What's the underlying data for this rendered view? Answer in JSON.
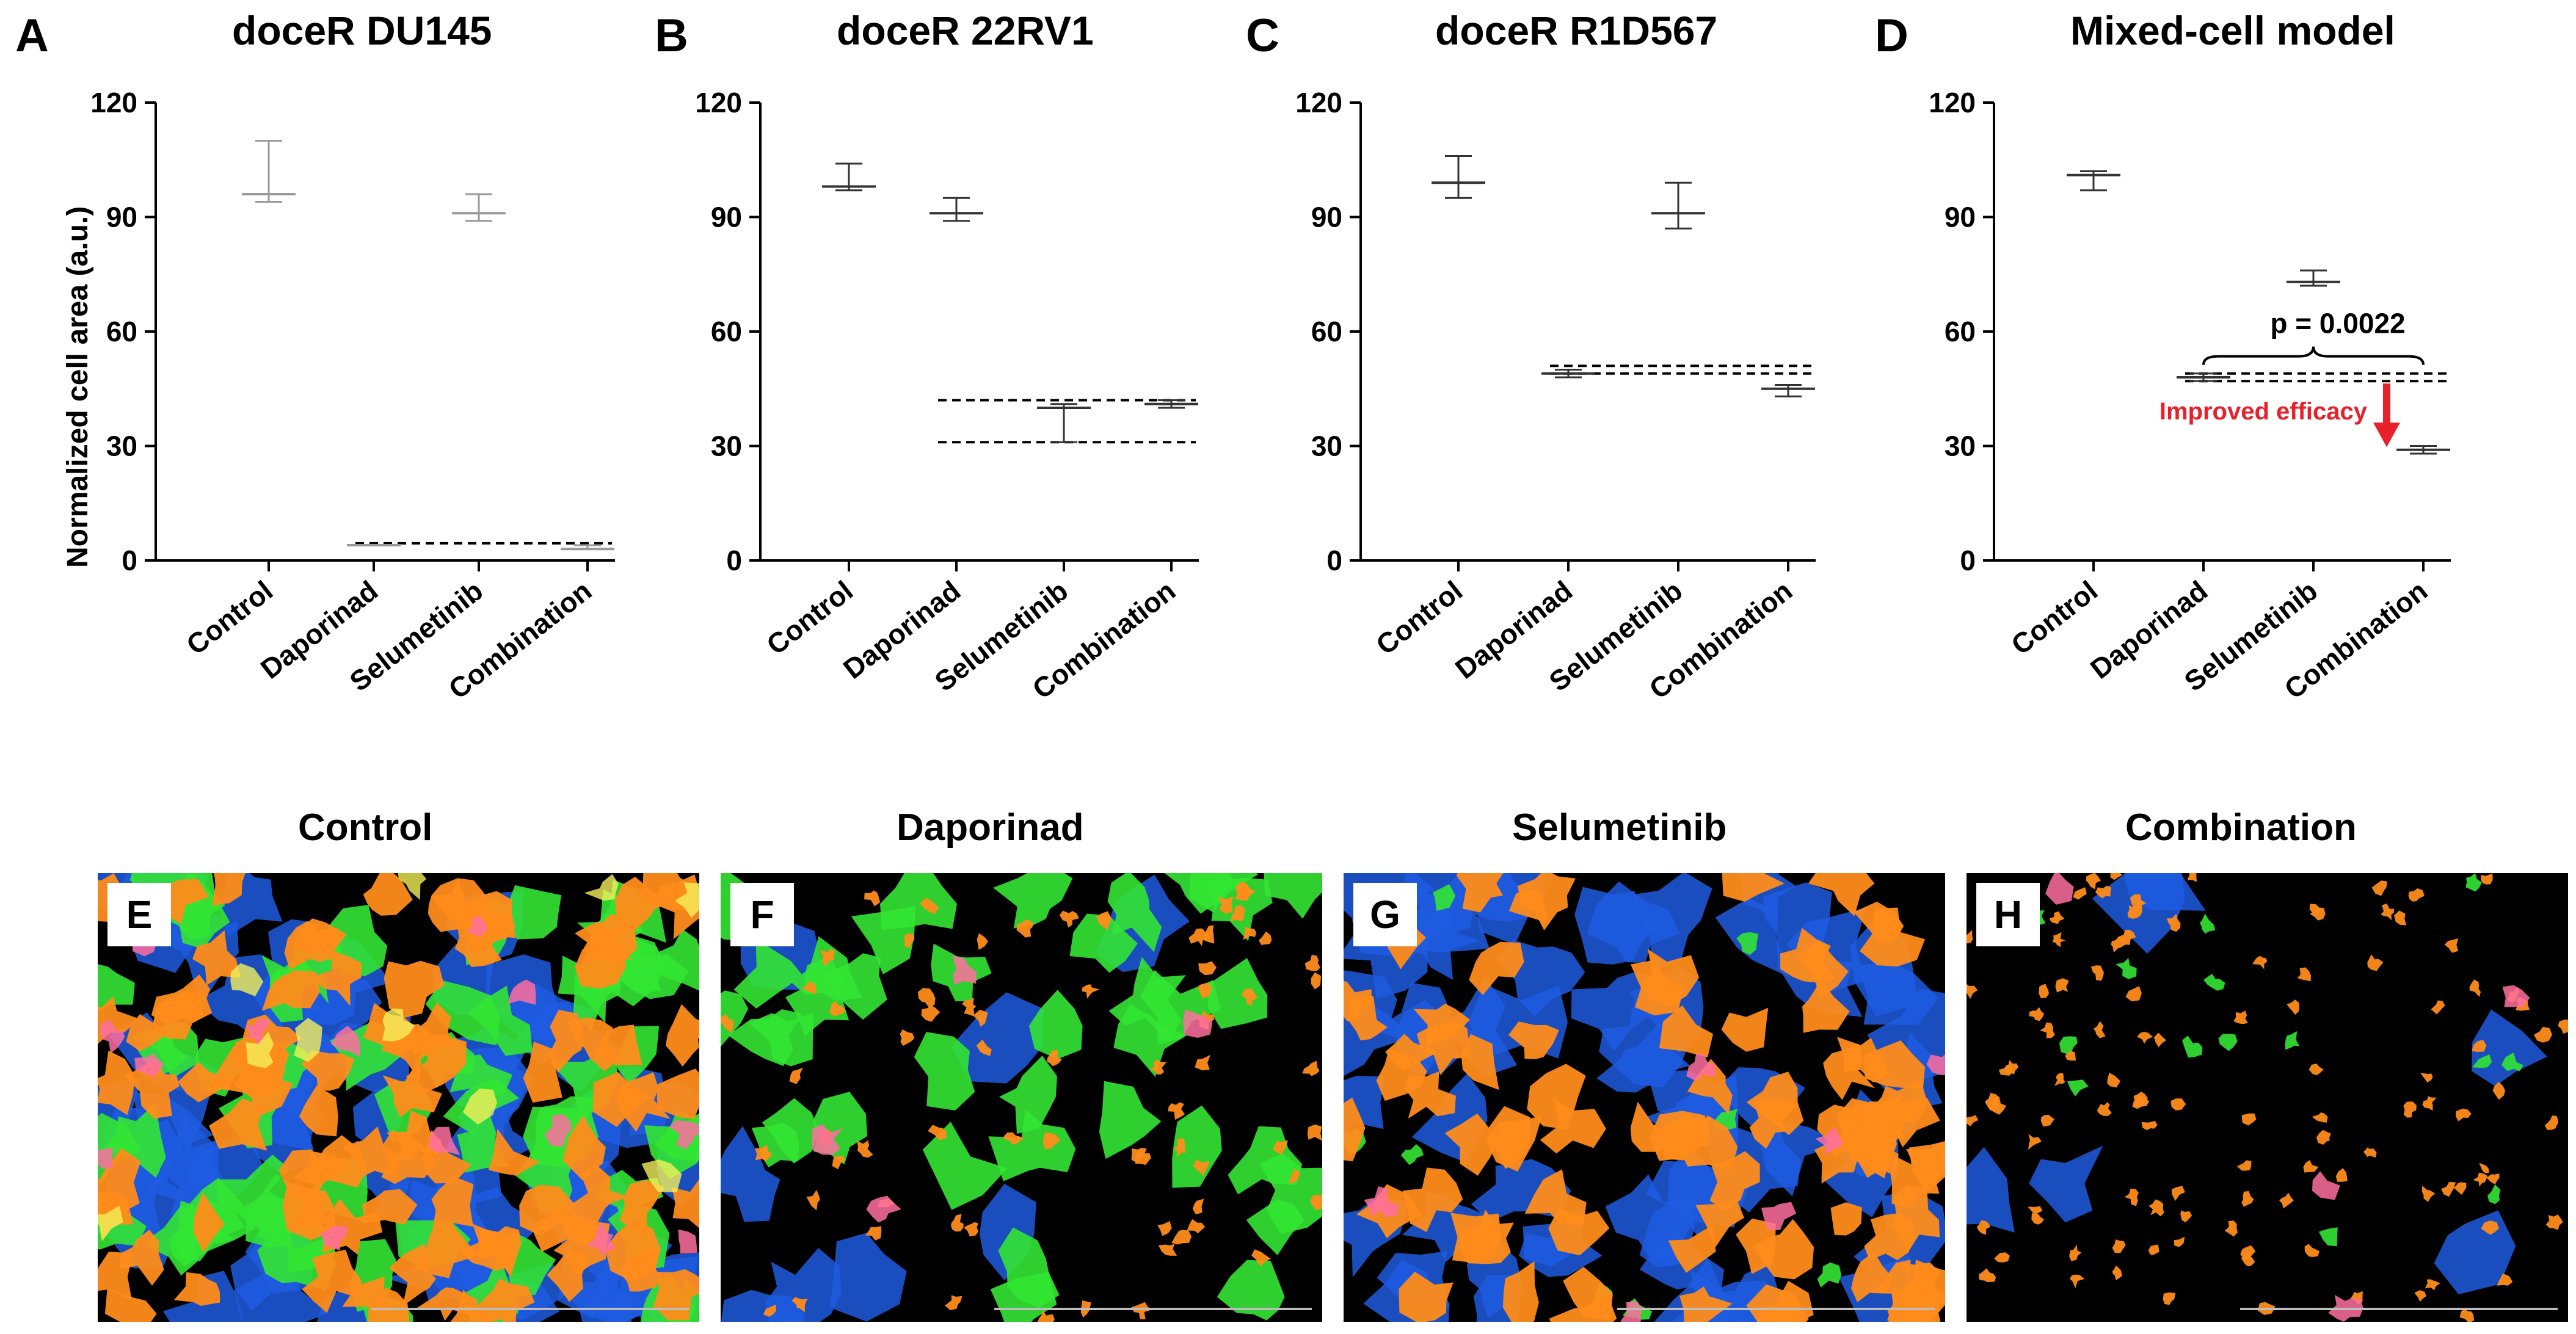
{
  "chart_data": [
    {
      "panel": "A",
      "type": "box",
      "title": "doceR DU145",
      "ylabel": "Normalized cell area (a.u.)",
      "ylim": [
        0,
        120
      ],
      "yticks": [
        "0",
        "30",
        "60",
        "90",
        "120"
      ],
      "categories": [
        "Control",
        "Daporinad",
        "Selumetinib",
        "Combination"
      ],
      "values": [
        96,
        4,
        91,
        3
      ],
      "errors": [
        [
          94,
          110
        ],
        [
          4,
          4
        ],
        [
          89,
          96
        ],
        [
          3,
          4
        ]
      ],
      "reference_lines": [
        4.5
      ],
      "color": "#9a9a9a"
    },
    {
      "panel": "B",
      "type": "box",
      "title": "doceR 22RV1",
      "ylim": [
        0,
        120
      ],
      "yticks": [
        "0",
        "30",
        "60",
        "90",
        "120"
      ],
      "categories": [
        "Control",
        "Daporinad",
        "Selumetinib",
        "Combination"
      ],
      "values": [
        98,
        91,
        40,
        41
      ],
      "errors": [
        [
          97,
          104
        ],
        [
          89,
          95
        ],
        [
          31,
          41
        ],
        [
          40,
          42
        ]
      ],
      "reference_lines": [
        42,
        31
      ],
      "color": "#333333"
    },
    {
      "panel": "C",
      "type": "box",
      "title": "doceR R1D567",
      "ylim": [
        0,
        120
      ],
      "yticks": [
        "0",
        "30",
        "60",
        "90",
        "120"
      ],
      "categories": [
        "Control",
        "Daporinad",
        "Selumetinib",
        "Combination"
      ],
      "values": [
        99,
        49,
        91,
        45
      ],
      "errors": [
        [
          95,
          106
        ],
        [
          48,
          50
        ],
        [
          87,
          99
        ],
        [
          43,
          46
        ]
      ],
      "reference_lines": [
        51,
        49
      ],
      "color": "#333333"
    },
    {
      "panel": "D",
      "type": "box",
      "title": "Mixed-cell model",
      "ylim": [
        0,
        120
      ],
      "yticks": [
        "0",
        "30",
        "60",
        "90",
        "120"
      ],
      "categories": [
        "Control",
        "Daporinad",
        "Selumetinib",
        "Combination"
      ],
      "values": [
        101,
        48,
        73,
        29
      ],
      "errors": [
        [
          97,
          102
        ],
        [
          47,
          49
        ],
        [
          72,
          76
        ],
        [
          28,
          30
        ]
      ],
      "reference_lines": [
        49,
        47
      ],
      "annotation_p": "p = 0.0022",
      "annotation_effect": "Improved efficacy",
      "color": "#333333"
    }
  ],
  "images": [
    {
      "letter": "E",
      "title": "Control"
    },
    {
      "letter": "F",
      "title": "Daporinad"
    },
    {
      "letter": "G",
      "title": "Selumetinib"
    },
    {
      "letter": "H",
      "title": "Combination"
    }
  ],
  "colors": {
    "orange": "#ff8c1a",
    "green": "#33e633",
    "blue": "#1f5ce0",
    "pink": "#ff6fa0",
    "yellow": "#f4f05a",
    "red": "#e8202a"
  }
}
